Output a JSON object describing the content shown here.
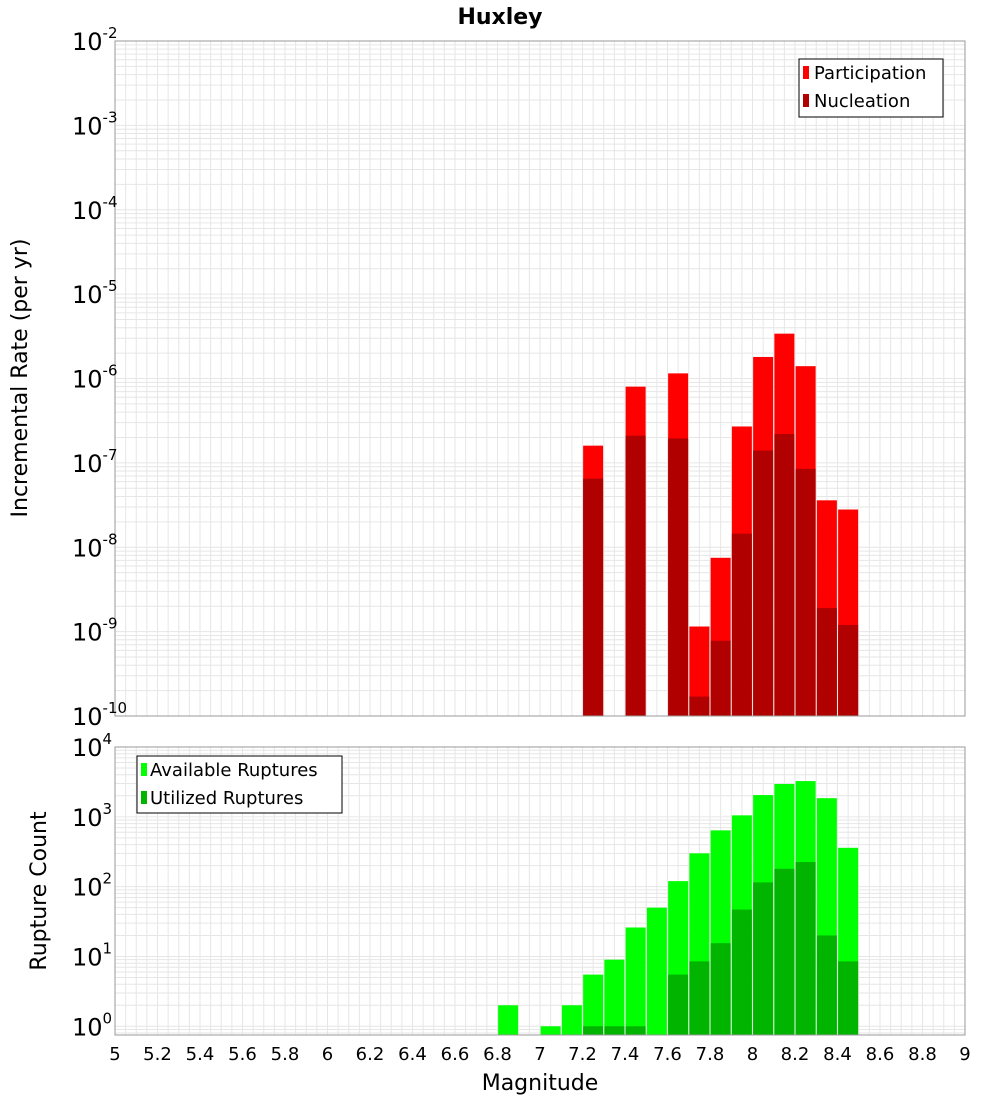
{
  "colors": {
    "participation": "#ff0000",
    "nucleation": "#b00000",
    "available": "#00ff00",
    "utilized": "#00b400",
    "grid": "#e6e6e6",
    "frame": "#999999"
  },
  "chart_data": [
    {
      "type": "bar",
      "title": "Huxley",
      "xlabel": "",
      "ylabel": "Incremental Rate (per yr)",
      "yscale": "log",
      "ylim": [
        1e-10,
        0.01
      ],
      "xlim": [
        5,
        9
      ],
      "ytick_base": "10",
      "yticks": [
        {
          "value": 0.01,
          "exp": "-2"
        },
        {
          "value": 0.001,
          "exp": "-3"
        },
        {
          "value": 0.0001,
          "exp": "-4"
        },
        {
          "value": 1e-05,
          "exp": "-5"
        },
        {
          "value": 1e-06,
          "exp": "-6"
        },
        {
          "value": 1e-07,
          "exp": "-7"
        },
        {
          "value": 1e-08,
          "exp": "-8"
        },
        {
          "value": 1e-09,
          "exp": "-9"
        },
        {
          "value": 1e-10,
          "exp": "-10"
        }
      ],
      "legend_position": "top-right",
      "x": [
        7.25,
        7.45,
        7.65,
        7.75,
        7.85,
        7.95,
        8.05,
        8.15,
        8.25,
        8.35,
        8.45
      ],
      "series": [
        {
          "name": "Participation",
          "values": [
            1.6e-07,
            8e-07,
            1.15e-06,
            1.15e-09,
            7.5e-09,
            2.7e-07,
            1.8e-06,
            3.4e-06,
            1.4e-06,
            3.6e-08,
            2.8e-08
          ]
        },
        {
          "name": "Nucleation",
          "values": [
            6.5e-08,
            2.1e-07,
            1.95e-07,
            1.7e-10,
            7.8e-10,
            1.45e-08,
            1.4e-07,
            2.2e-07,
            8.5e-08,
            1.9e-09,
            1.2e-09
          ]
        }
      ]
    },
    {
      "type": "bar",
      "title": "",
      "xlabel": "Magnitude",
      "ylabel": "Rupture Count",
      "yscale": "log",
      "ylim": [
        0.75,
        10000
      ],
      "xlim": [
        5,
        9
      ],
      "ytick_base": "10",
      "yticks": [
        {
          "value": 10000,
          "exp": "4"
        },
        {
          "value": 1000,
          "exp": "3"
        },
        {
          "value": 100,
          "exp": "2"
        },
        {
          "value": 10,
          "exp": "1"
        },
        {
          "value": 1,
          "exp": "0"
        }
      ],
      "xticks": [
        "5",
        "5.2",
        "5.4",
        "5.6",
        "5.8",
        "6",
        "6.2",
        "6.4",
        "6.6",
        "6.8",
        "7",
        "7.2",
        "7.4",
        "7.6",
        "7.8",
        "8",
        "8.2",
        "8.4",
        "8.6",
        "8.8",
        "9"
      ],
      "legend_position": "top-left",
      "x": [
        6.85,
        7.05,
        7.15,
        7.25,
        7.35,
        7.45,
        7.55,
        7.65,
        7.75,
        7.85,
        7.95,
        8.05,
        8.15,
        8.25,
        8.35,
        8.45
      ],
      "series": [
        {
          "name": "Available Ruptures",
          "values": [
            2,
            1,
            2,
            5.5,
            9,
            26,
            50,
            120,
            300,
            640,
            1050,
            2050,
            2950,
            3250,
            1850,
            360
          ]
        },
        {
          "name": "Utilized Ruptures",
          "values": [
            0,
            0,
            0,
            1,
            1,
            1,
            0,
            5.5,
            8.5,
            15.5,
            47,
            115,
            180,
            225,
            20,
            8.5
          ]
        }
      ]
    }
  ]
}
